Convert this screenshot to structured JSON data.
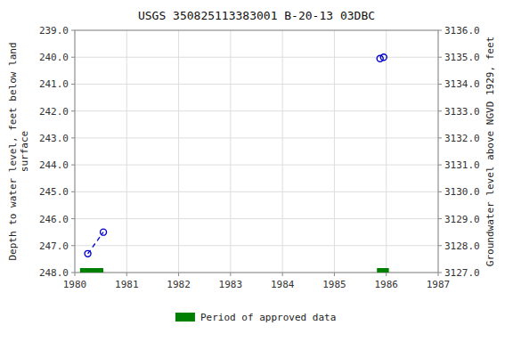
{
  "chart_data": {
    "type": "scatter",
    "title": "USGS 350825113383001 B-20-13 03DBC",
    "ylabel": "Depth to water level, feet below land\nsurface",
    "y2label": "Groundwater level above NGVD 1929, feet",
    "xlim": [
      1980,
      1987
    ],
    "xticks": [
      1980,
      1981,
      1982,
      1983,
      1984,
      1985,
      1986,
      1987
    ],
    "ylim": [
      248.0,
      239.0
    ],
    "yticks": [
      {
        "value": 239.0,
        "label": "239.0"
      },
      {
        "value": 240.0,
        "label": "240.0"
      },
      {
        "value": 241.0,
        "label": "241.0"
      },
      {
        "value": 242.0,
        "label": "242.0"
      },
      {
        "value": 243.0,
        "label": "243.0"
      },
      {
        "value": 244.0,
        "label": "244.0"
      },
      {
        "value": 245.0,
        "label": "245.0"
      },
      {
        "value": 246.0,
        "label": "246.0"
      },
      {
        "value": 247.0,
        "label": "247.0"
      },
      {
        "value": 248.0,
        "label": "248.0"
      }
    ],
    "y2lim": [
      3127.0,
      3136.0
    ],
    "y2ticks": [
      {
        "value": 3136.0,
        "label": "3136.0"
      },
      {
        "value": 3135.0,
        "label": "3135.0"
      },
      {
        "value": 3134.0,
        "label": "3134.0"
      },
      {
        "value": 3133.0,
        "label": "3133.0"
      },
      {
        "value": 3132.0,
        "label": "3132.0"
      },
      {
        "value": 3131.0,
        "label": "3131.0"
      },
      {
        "value": 3130.0,
        "label": "3130.0"
      },
      {
        "value": 3129.0,
        "label": "3129.0"
      },
      {
        "value": 3128.0,
        "label": "3128.0"
      },
      {
        "value": 3127.0,
        "label": "3127.0"
      }
    ],
    "grid": true,
    "legend": "bottom",
    "series": [
      {
        "type": "scatter",
        "marker": "open_circle",
        "color": "#0000cc",
        "x": [
          1980.25,
          1980.55,
          1985.88,
          1985.95
        ],
        "values": [
          247.3,
          246.5,
          240.05,
          240.0
        ]
      },
      {
        "type": "line",
        "line_style": "dashed",
        "color": "#0000cc",
        "x": [
          1980.25,
          1980.55
        ],
        "values": [
          247.3,
          246.5
        ]
      },
      {
        "name": "Period of approved data",
        "type": "period",
        "color": "#008000",
        "x": [
          [
            1980.1,
            1980.55
          ],
          [
            1985.82,
            1986.05
          ]
        ]
      }
    ]
  }
}
